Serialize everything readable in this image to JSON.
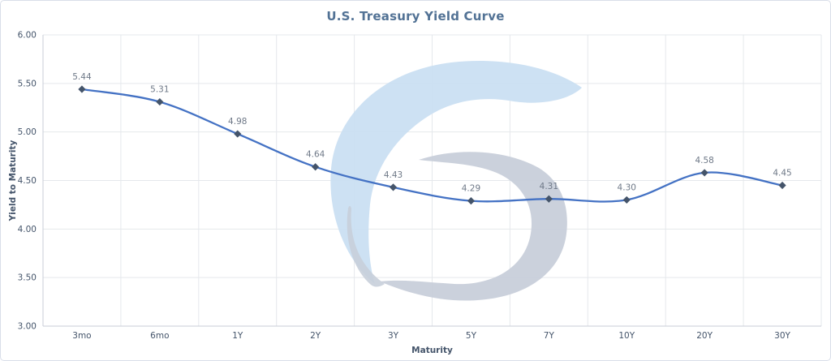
{
  "window": {
    "background": "#ffffff",
    "border_color": "#d9dee9"
  },
  "chart_data": {
    "type": "line",
    "title": "U.S. Treasury Yield Curve",
    "xlabel": "Maturity",
    "ylabel": "Yield to Maturity",
    "categories": [
      "3mo",
      "6mo",
      "1Y",
      "2Y",
      "3Y",
      "5Y",
      "7Y",
      "10Y",
      "20Y",
      "30Y"
    ],
    "series": [
      {
        "name": "U.S. Treasury Yield Curve",
        "values": [
          5.44,
          5.31,
          4.98,
          4.64,
          4.43,
          4.29,
          4.31,
          4.3,
          4.58,
          4.45
        ]
      }
    ],
    "data_labels": [
      "5.44",
      "5.31",
      "4.98",
      "4.64",
      "4.43",
      "4.29",
      "4.31",
      "4.30",
      "4.58",
      "4.45"
    ],
    "y_ticks": [
      "6.00",
      "5.50",
      "5.00",
      "4.50",
      "4.00",
      "3.50",
      "3.00"
    ],
    "ylim": [
      3.0,
      6.0
    ],
    "grid": true,
    "legend": "none",
    "smooth": true,
    "marker": "diamond",
    "colors": {
      "title": "#527295",
      "line": "#4472c4",
      "marker": "#44546a",
      "data_label": "#6e7887",
      "tick_label": "#44546a",
      "axis_title": "#44546a",
      "gridline": "#e5e8ec",
      "axis_line": "#c9ced7",
      "plot_border": "#dde1e8"
    }
  },
  "watermark": {
    "name": "swirl-logo-watermark",
    "blue": "#cadff2",
    "gray": "#c8cfda"
  }
}
